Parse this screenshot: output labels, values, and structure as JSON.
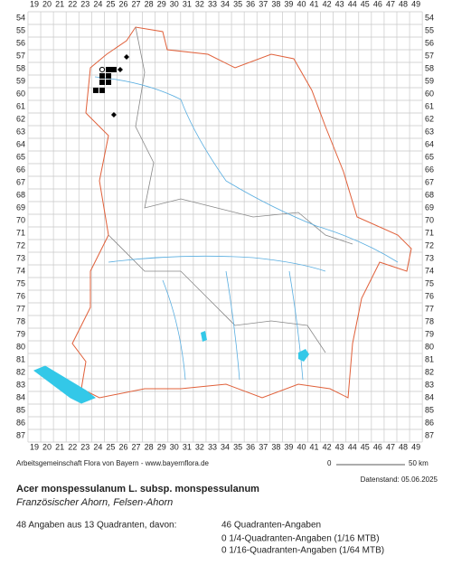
{
  "map": {
    "columns": [
      19,
      20,
      21,
      22,
      23,
      24,
      25,
      26,
      27,
      28,
      29,
      30,
      31,
      32,
      33,
      34,
      35,
      36,
      37,
      38,
      39,
      40,
      41,
      42,
      43,
      44,
      45,
      46,
      47,
      48,
      49
    ],
    "rows": [
      54,
      55,
      56,
      57,
      58,
      59,
      60,
      61,
      62,
      63,
      64,
      65,
      66,
      67,
      68,
      69,
      70,
      71,
      72,
      73,
      74,
      75,
      76,
      77,
      78,
      79,
      80,
      81,
      82,
      83,
      84,
      85,
      86,
      87
    ],
    "markers": [
      {
        "shape": "square",
        "x": 24.83,
        "y": 58.07
      },
      {
        "shape": "square",
        "x": 25.25,
        "y": 58.07
      },
      {
        "shape": "square",
        "x": 24.33,
        "y": 58.57
      },
      {
        "shape": "square",
        "x": 24.83,
        "y": 58.57
      },
      {
        "shape": "square",
        "x": 24.33,
        "y": 59.07
      },
      {
        "shape": "square",
        "x": 24.83,
        "y": 59.07
      },
      {
        "shape": "square",
        "x": 23.83,
        "y": 59.71
      },
      {
        "shape": "square",
        "x": 24.33,
        "y": 59.71
      },
      {
        "shape": "circle",
        "x": 24.33,
        "y": 58.07
      },
      {
        "shape": "diamond",
        "x": 25.75,
        "y": 58.07
      },
      {
        "shape": "diamond",
        "x": 26.25,
        "y": 57.07
      },
      {
        "shape": "diamond",
        "x": 25.25,
        "y": 61.64
      }
    ]
  },
  "footer": {
    "credit": "Arbeitsgemeinschaft Flora von Bayern - www.bayernflora.de",
    "scale_start": "0",
    "scale_end": "50 km",
    "date": "Datenstand: 05.06.2025",
    "title": "Acer monspessulanum L. subsp. monspessulanum",
    "subtitle": "Französischer Ahorn, Felsen-Ahorn",
    "summary": "48 Angaben aus 13 Quadranten, davon:",
    "counts": [
      "46 Quadranten-Angaben",
      "0 1/4-Quadranten-Angaben (1/16 MTB)",
      "0 1/16-Quadranten-Angaben (1/64 MTB)"
    ]
  }
}
